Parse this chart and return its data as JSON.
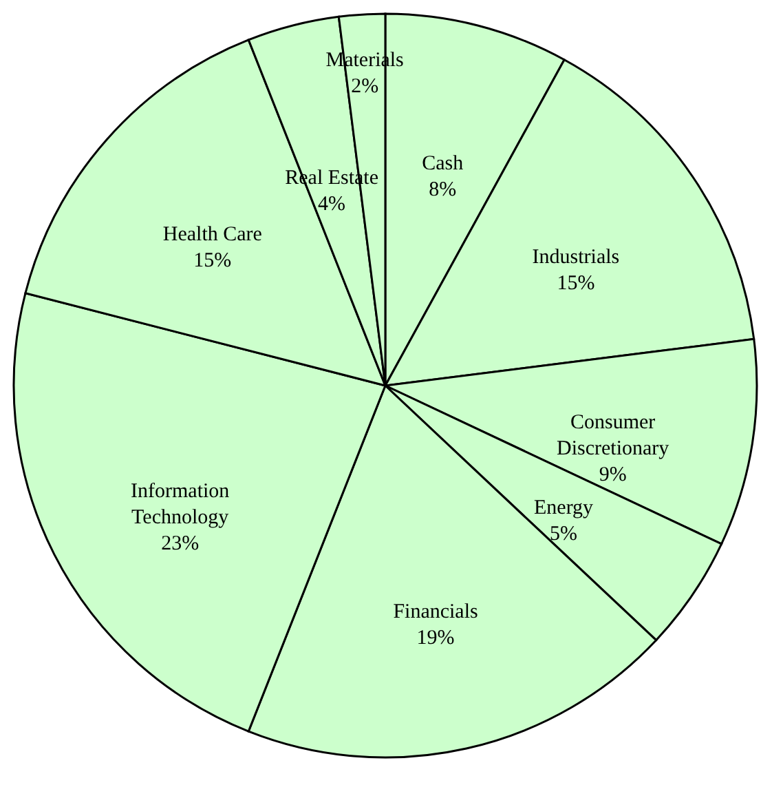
{
  "chart_data": {
    "type": "pie",
    "categories": [
      "Cash",
      "Industrials",
      "Consumer Discretionary",
      "Energy",
      "Financials",
      "Information Technology",
      "Health Care",
      "Real Estate",
      "Materials"
    ],
    "values": [
      8,
      15,
      9,
      5,
      19,
      23,
      15,
      4,
      2
    ],
    "colors": [
      "#ccffcc",
      "#ccffcc",
      "#ccffcc",
      "#ccffcc",
      "#ccffcc",
      "#ccffcc",
      "#ccffcc",
      "#ccffcc",
      "#ccffcc"
    ],
    "value_labels": [
      "8%",
      "15%",
      "9%",
      "5%",
      "19%",
      "23%",
      "15%",
      "4%",
      "2%"
    ],
    "legend": false
  }
}
